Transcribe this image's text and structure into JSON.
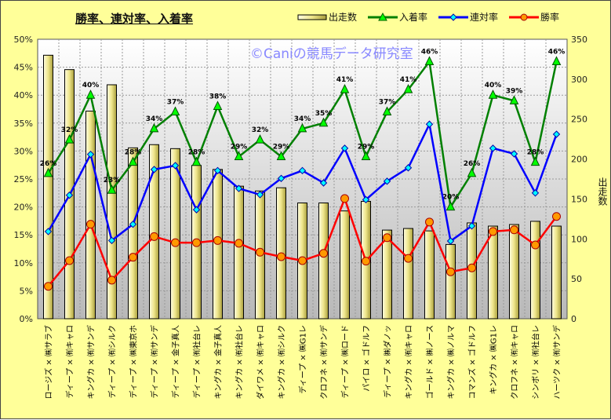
{
  "chart_data": {
    "type": "bar",
    "title": "勝率、連対率、入着率",
    "watermark": "©Caniの競馬データ研究室",
    "categories": [
      "ロージズ × ㈱サラブ",
      "ディープ × ㈲キャロ",
      "キングカ × ㈲サンデ",
      "ディープ × ㈲シルク",
      "ディープ × ㈱東京ホ",
      "ディープ × ㈲サンデ",
      "ディープ × 金子真人",
      "ディープ × ㈲社台レ",
      "キングカ × 金子真人",
      "キングカ × ㈲社台レ",
      "ダイワメ × ㈲キャロ",
      "キングカ × ㈲シルク",
      "ディープ × ㈱G1レ",
      "クロフネ × ㈲サンデ",
      "ディープ × ㈱ロード",
      "パイロ × ゴドルフ",
      "ディープ × ㈱ダノッ",
      "キングカ × ㈲キャロ",
      "ゴールド × ㈱ノース",
      "キングカ × ㈱ノルマ",
      "コマンズ × ゴドルフ",
      "キングカ × ㈱G1レ",
      "クロフネ × ㈲キャロ",
      "シンボリ × ㈲社台レ",
      "ハーツク × ㈲サンデ"
    ],
    "series": [
      {
        "name": "出走数",
        "type": "bar",
        "axis": "right",
        "color": "#f0ec9c",
        "values": [
          330,
          312,
          260,
          293,
          214,
          218,
          213,
          192,
          187,
          166,
          160,
          164,
          145,
          145,
          135,
          147,
          111,
          113,
          110,
          93,
          120,
          116,
          118,
          122,
          116
        ]
      },
      {
        "name": "入着率",
        "type": "line",
        "axis": "left",
        "color": "#008000",
        "marker": "triangle",
        "marker_color": "#00ff00",
        "values": [
          26,
          32,
          40,
          23,
          28,
          34,
          37,
          28,
          38,
          29,
          32,
          29,
          34,
          35,
          41,
          29,
          37,
          41,
          46,
          20,
          26,
          40,
          39,
          28,
          46
        ],
        "labels": [
          "26%",
          "32%",
          "40%",
          "23%",
          "28%",
          "34%",
          "37%",
          "28%",
          "38%",
          "29%",
          "32%",
          "29%",
          "34%",
          "35%",
          "41%",
          "29%",
          "37%",
          "41%",
          "46%",
          "20%",
          "26%",
          "40%",
          "39%",
          "28%",
          "46%"
        ]
      },
      {
        "name": "連対率",
        "type": "line",
        "axis": "left",
        "color": "#0000ff",
        "marker": "diamond",
        "marker_color": "#00ffff",
        "values": [
          15.6,
          22.1,
          29.4,
          14.0,
          16.9,
          26.7,
          27.4,
          19.5,
          26.5,
          23.3,
          22.2,
          25.1,
          26.5,
          24.3,
          30.5,
          21.3,
          24.6,
          27.0,
          34.8,
          13.9,
          16.6,
          30.5,
          29.5,
          22.5,
          33.0
        ]
      },
      {
        "name": "勝率",
        "type": "line",
        "axis": "left",
        "color": "#ff0000",
        "marker": "circle",
        "marker_color": "#ff9900",
        "values": [
          5.8,
          10.4,
          16.9,
          6.9,
          11.0,
          14.7,
          13.6,
          13.6,
          14.0,
          13.5,
          11.9,
          11.1,
          10.4,
          11.7,
          21.5,
          10.3,
          14.5,
          10.8,
          17.3,
          8.4,
          9.1,
          15.6,
          15.9,
          13.2,
          18.3
        ]
      }
    ],
    "left_axis": {
      "ylim": [
        0,
        50
      ],
      "ticks": [
        "0%",
        "5%",
        "10%",
        "15%",
        "20%",
        "25%",
        "30%",
        "35%",
        "40%",
        "45%",
        "50%"
      ]
    },
    "right_axis": {
      "label": "出走数",
      "ylim": [
        0,
        350
      ],
      "ticks": [
        "0",
        "50",
        "100",
        "150",
        "200",
        "250",
        "300",
        "350"
      ]
    },
    "legend": [
      "出走数",
      "入着率",
      "連対率",
      "勝率"
    ],
    "legend_position": "top-right",
    "grid": true
  }
}
